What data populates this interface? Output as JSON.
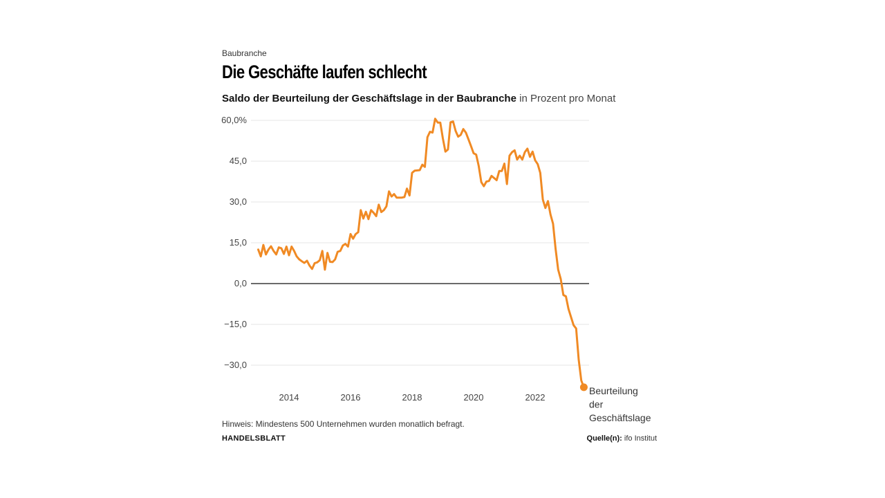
{
  "kicker": "Baubranche",
  "title": "Die Geschäfte laufen schlecht",
  "subtitle_bold": "Saldo der Beurteilung der Geschäftslage in der Baubranche",
  "subtitle_unit": "in Prozent pro Monat",
  "note": "Hinweis: Mindestens 500 Unternehmen wurden monatlich befragt.",
  "brand": "HANDELSBLATT",
  "source_label": "Quelle(n):",
  "source_value": "ifo Institut",
  "chart_data": {
    "type": "line",
    "title": "Saldo der Beurteilung der Geschäftslage in der Baubranche",
    "ylabel": "in Prozent pro Monat",
    "ylim": [
      -40,
      60
    ],
    "yticks": [
      60,
      45,
      30,
      15,
      0,
      -15,
      -30
    ],
    "ytick_labels": [
      "60,0%",
      "45,0",
      "30,0",
      "15,0",
      "0,0",
      "−15,0",
      "−30,0"
    ],
    "xticks": [
      "2014",
      "2016",
      "2018",
      "2020",
      "2022"
    ],
    "grid": true,
    "color": "#f08a24",
    "series": [
      {
        "name": "Beurteilung der Geschäftslage",
        "label_lines": [
          "Beurteilung",
          "der",
          "Geschäftslage"
        ],
        "points": [
          [
            "2013-01",
            12.5
          ],
          [
            "2013-02",
            10
          ],
          [
            "2013-03",
            14.2
          ],
          [
            "2013-04",
            10.7
          ],
          [
            "2013-05",
            12.5
          ],
          [
            "2013-06",
            13.7
          ],
          [
            "2013-07",
            12
          ],
          [
            "2013-08",
            10.7
          ],
          [
            "2013-09",
            13.3
          ],
          [
            "2013-10",
            13
          ],
          [
            "2013-11",
            10.9
          ],
          [
            "2013-12",
            13.6
          ],
          [
            "2014-01",
            10.4
          ],
          [
            "2014-02",
            13.6
          ],
          [
            "2014-03",
            12
          ],
          [
            "2014-04",
            10
          ],
          [
            "2014-05",
            8.9
          ],
          [
            "2014-06",
            8.2
          ],
          [
            "2014-07",
            7.6
          ],
          [
            "2014-08",
            8.4
          ],
          [
            "2014-09",
            6.6
          ],
          [
            "2014-10",
            5.4
          ],
          [
            "2014-11",
            7.5
          ],
          [
            "2014-12",
            7.8
          ],
          [
            "2015-01",
            8.6
          ],
          [
            "2015-02",
            12
          ],
          [
            "2015-03",
            5.1
          ],
          [
            "2015-04",
            11.3
          ],
          [
            "2015-05",
            8
          ],
          [
            "2015-06",
            7.9
          ],
          [
            "2015-07",
            8.9
          ],
          [
            "2015-08",
            11.7
          ],
          [
            "2015-09",
            12
          ],
          [
            "2015-10",
            14
          ],
          [
            "2015-11",
            14.6
          ],
          [
            "2015-12",
            13.6
          ],
          [
            "2016-01",
            18.2
          ],
          [
            "2016-02",
            16.5
          ],
          [
            "2016-03",
            18.2
          ],
          [
            "2016-04",
            18.9
          ],
          [
            "2016-05",
            27
          ],
          [
            "2016-06",
            23.9
          ],
          [
            "2016-07",
            26.4
          ],
          [
            "2016-08",
            23.7
          ],
          [
            "2016-09",
            27
          ],
          [
            "2016-10",
            26
          ],
          [
            "2016-11",
            24.8
          ],
          [
            "2016-12",
            29
          ],
          [
            "2017-01",
            26.3
          ],
          [
            "2017-02",
            27
          ],
          [
            "2017-03",
            28.4
          ],
          [
            "2017-04",
            33.9
          ],
          [
            "2017-05",
            32
          ],
          [
            "2017-06",
            32.9
          ],
          [
            "2017-07",
            31.6
          ],
          [
            "2017-08",
            31.6
          ],
          [
            "2017-09",
            31.6
          ],
          [
            "2017-10",
            31.8
          ],
          [
            "2017-11",
            34.9
          ],
          [
            "2017-12",
            32.4
          ],
          [
            "2018-01",
            40.7
          ],
          [
            "2018-02",
            41.5
          ],
          [
            "2018-03",
            41.6
          ],
          [
            "2018-04",
            41.7
          ],
          [
            "2018-05",
            43.7
          ],
          [
            "2018-06",
            42.9
          ],
          [
            "2018-07",
            53.8
          ],
          [
            "2018-08",
            55.8
          ],
          [
            "2018-09",
            55.5
          ],
          [
            "2018-10",
            60.6
          ],
          [
            "2018-11",
            59.2
          ],
          [
            "2018-12",
            59.2
          ],
          [
            "2019-01",
            53.4
          ],
          [
            "2019-02",
            48.5
          ],
          [
            "2019-03",
            49.3
          ],
          [
            "2019-04",
            59.3
          ],
          [
            "2019-05",
            59.6
          ],
          [
            "2019-06",
            56.1
          ],
          [
            "2019-07",
            54
          ],
          [
            "2019-08",
            54.7
          ],
          [
            "2019-09",
            56.8
          ],
          [
            "2019-10",
            55.5
          ],
          [
            "2019-11",
            53
          ],
          [
            "2019-12",
            50.5
          ],
          [
            "2020-01",
            47.9
          ],
          [
            "2020-02",
            47.4
          ],
          [
            "2020-03",
            43.2
          ],
          [
            "2020-04",
            37.3
          ],
          [
            "2020-05",
            35.8
          ],
          [
            "2020-06",
            37.5
          ],
          [
            "2020-07",
            37.7
          ],
          [
            "2020-08",
            39.6
          ],
          [
            "2020-09",
            38.8
          ],
          [
            "2020-10",
            38
          ],
          [
            "2020-11",
            41.4
          ],
          [
            "2020-12",
            41.4
          ],
          [
            "2021-01",
            44.1
          ],
          [
            "2021-02",
            36.6
          ],
          [
            "2021-03",
            47
          ],
          [
            "2021-04",
            48.3
          ],
          [
            "2021-05",
            49
          ],
          [
            "2021-06",
            45.6
          ],
          [
            "2021-07",
            47
          ],
          [
            "2021-08",
            45.6
          ],
          [
            "2021-09",
            48.3
          ],
          [
            "2021-10",
            49.6
          ],
          [
            "2021-11",
            46.6
          ],
          [
            "2021-12",
            48.5
          ],
          [
            "2022-01",
            45.3
          ],
          [
            "2022-02",
            43.9
          ],
          [
            "2022-03",
            40.7
          ],
          [
            "2022-04",
            30.9
          ],
          [
            "2022-05",
            27.8
          ],
          [
            "2022-06",
            30.3
          ],
          [
            "2022-07",
            25.4
          ],
          [
            "2022-08",
            22
          ],
          [
            "2022-09",
            12.7
          ],
          [
            "2022-10",
            5.1
          ],
          [
            "2022-11",
            1.7
          ],
          [
            "2022-12",
            -4.2
          ],
          [
            "2023-01",
            -4.7
          ],
          [
            "2023-02",
            -9.3
          ],
          [
            "2023-03",
            -12.3
          ],
          [
            "2023-04",
            -15.3
          ],
          [
            "2023-05",
            -16.5
          ],
          [
            "2023-06",
            -28
          ],
          [
            "2023-07",
            -35.6
          ],
          [
            "2023-08",
            -38.1
          ]
        ]
      }
    ]
  }
}
